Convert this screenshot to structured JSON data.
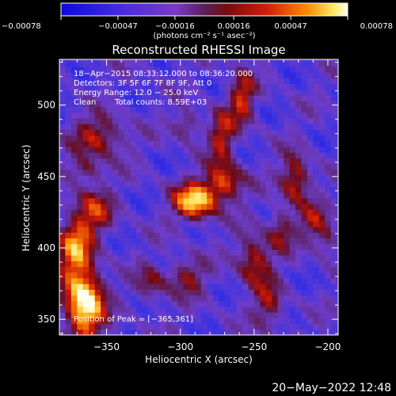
{
  "chart_data": {
    "type": "heatmap",
    "title": "Reconstructed RHESSI Image",
    "xlabel": "Heliocentric X (arcsec)",
    "ylabel": "Heliocentric Y (arcsec)",
    "xlim": [
      -382,
      -193
    ],
    "ylim": [
      339,
      532
    ],
    "x_ticks": [
      -350,
      -300,
      -250,
      -200
    ],
    "x_tick_labels": [
      "−350",
      "−300",
      "−250",
      "−200"
    ],
    "y_ticks": [
      350,
      400,
      450,
      500
    ],
    "y_tick_labels": [
      "350",
      "400",
      "450",
      "500"
    ],
    "colorbar": {
      "min": -0.00078,
      "max": 0.00078,
      "ticks": [
        -0.00078,
        -0.00047,
        -0.00016,
        0.00016,
        0.00047,
        0.00078
      ],
      "tick_labels": [
        "−0.00078",
        "−0.00047",
        "−0.00016",
        "0.00016",
        "0.00047",
        "0.00078"
      ],
      "units": "(photons cm⁻² s⁻¹ asec⁻²)"
    },
    "annotations": {
      "time_range": "18−Apr−2015 08:33:12.000 to 08:36:20.000",
      "detectors": "Detectors: 3F 5F 6F 7F 8F 9F, Att 0",
      "energy_range": "Energy Range: 12.0 − 25.0 keV",
      "clean": "Clean",
      "total_counts": "Total counts: 8.59E+03",
      "peak": "Position of Peak = [−365,361]"
    },
    "peak_position": [
      -365,
      361
    ],
    "emission_sources": [
      {
        "x": -365,
        "y": 361,
        "sx": 9,
        "sy": 16,
        "amp": 1.55
      },
      {
        "x": -372,
        "y": 398,
        "sx": 8,
        "sy": 14,
        "amp": 0.95
      },
      {
        "x": -360,
        "y": 425,
        "sx": 10,
        "sy": 12,
        "amp": 0.7
      },
      {
        "x": -355,
        "y": 478,
        "sx": 12,
        "sy": 10,
        "amp": 0.7
      },
      {
        "x": -365,
        "y": 455,
        "sx": 8,
        "sy": 6,
        "amp": 0.5
      },
      {
        "x": -290,
        "y": 433,
        "sx": 10,
        "sy": 9,
        "amp": 1.25
      },
      {
        "x": -270,
        "y": 446,
        "sx": 9,
        "sy": 9,
        "amp": 0.85
      },
      {
        "x": -272,
        "y": 478,
        "sx": 6,
        "sy": 13,
        "amp": 0.7
      },
      {
        "x": -258,
        "y": 505,
        "sx": 6,
        "sy": 13,
        "amp": 0.75
      },
      {
        "x": -296,
        "y": 486,
        "sx": 6,
        "sy": 7,
        "amp": 0.55
      },
      {
        "x": -320,
        "y": 375,
        "sx": 7,
        "sy": 9,
        "amp": 0.5
      },
      {
        "x": -296,
        "y": 380,
        "sx": 9,
        "sy": 9,
        "amp": 0.55
      },
      {
        "x": -250,
        "y": 392,
        "sx": 8,
        "sy": 12,
        "amp": 0.75
      },
      {
        "x": -240,
        "y": 360,
        "sx": 7,
        "sy": 12,
        "amp": 0.55
      },
      {
        "x": -232,
        "y": 413,
        "sx": 6,
        "sy": 10,
        "amp": 0.55
      },
      {
        "x": -222,
        "y": 448,
        "sx": 7,
        "sy": 12,
        "amp": 0.8
      },
      {
        "x": -210,
        "y": 418,
        "sx": 7,
        "sy": 9,
        "amp": 0.55
      },
      {
        "x": -200,
        "y": 405,
        "sx": 5,
        "sy": 8,
        "amp": 0.45
      }
    ]
  },
  "timestamp": "20−May−2022 12:48"
}
